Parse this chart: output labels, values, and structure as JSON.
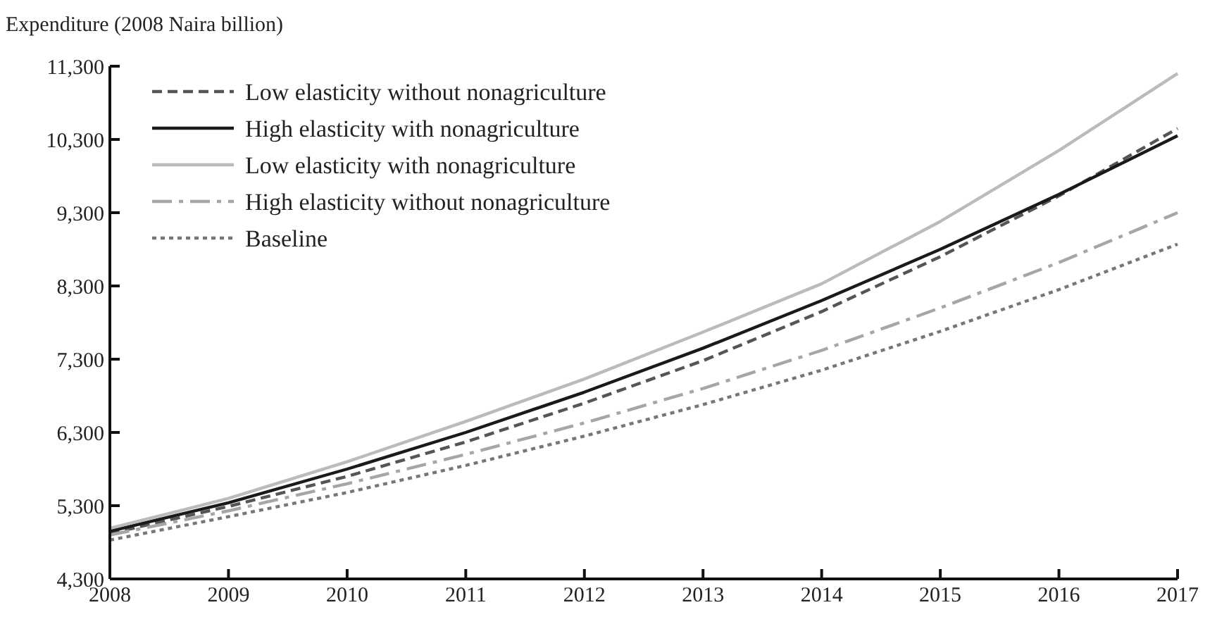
{
  "chart_data": {
    "type": "line",
    "ylabel": "Expenditure (2008 Naira billion)",
    "x": [
      2008,
      2009,
      2010,
      2011,
      2012,
      2013,
      2014,
      2015,
      2016,
      2017
    ],
    "xlim": [
      2008,
      2017
    ],
    "xticks": [
      {
        "value": 2008,
        "label": "2008"
      },
      {
        "value": 2009,
        "label": "2009"
      },
      {
        "value": 2010,
        "label": "2010"
      },
      {
        "value": 2011,
        "label": "2011"
      },
      {
        "value": 2012,
        "label": "2012"
      },
      {
        "value": 2013,
        "label": "2013"
      },
      {
        "value": 2014,
        "label": "2014"
      },
      {
        "value": 2015,
        "label": "2015"
      },
      {
        "value": 2016,
        "label": "2016"
      },
      {
        "value": 2017,
        "label": "2017"
      }
    ],
    "ylim": [
      4300,
      11300
    ],
    "yticks": [
      {
        "value": 4300,
        "label": "4,300"
      },
      {
        "value": 5300,
        "label": "5,300"
      },
      {
        "value": 6300,
        "label": "6,300"
      },
      {
        "value": 7300,
        "label": "7,300"
      },
      {
        "value": 8300,
        "label": "8,300"
      },
      {
        "value": 9300,
        "label": "9,300"
      },
      {
        "value": 10300,
        "label": "10,300"
      },
      {
        "value": 11300,
        "label": "11,300"
      }
    ],
    "legend": "top left",
    "grid": false,
    "marker": "none",
    "series": [
      {
        "name": "Low elasticity without nonagriculture",
        "color": "#555555",
        "line_style": "dashed",
        "values": [
          4920,
          5290,
          5700,
          6170,
          6700,
          7280,
          7950,
          8700,
          9530,
          10450
        ]
      },
      {
        "name": "High elasticity with nonagriculture",
        "color": "#1a1a1a",
        "line_style": "solid",
        "values": [
          4950,
          5340,
          5800,
          6300,
          6850,
          7450,
          8100,
          8800,
          9550,
          10350
        ]
      },
      {
        "name": "Low elasticity with nonagriculture",
        "color": "#bbbbbb",
        "line_style": "solid",
        "values": [
          4990,
          5400,
          5900,
          6450,
          7030,
          7670,
          8330,
          9180,
          10150,
          11200
        ]
      },
      {
        "name": "High elasticity without nonagriculture",
        "color": "#a6a6a6",
        "line_style": "dashdot",
        "values": [
          4900,
          5230,
          5600,
          6000,
          6430,
          6900,
          7420,
          8000,
          8620,
          9300
        ]
      },
      {
        "name": "Baseline",
        "color": "#777777",
        "line_style": "dotted",
        "values": [
          4830,
          5150,
          5480,
          5850,
          6250,
          6680,
          7150,
          7680,
          8250,
          8870
        ]
      }
    ]
  }
}
